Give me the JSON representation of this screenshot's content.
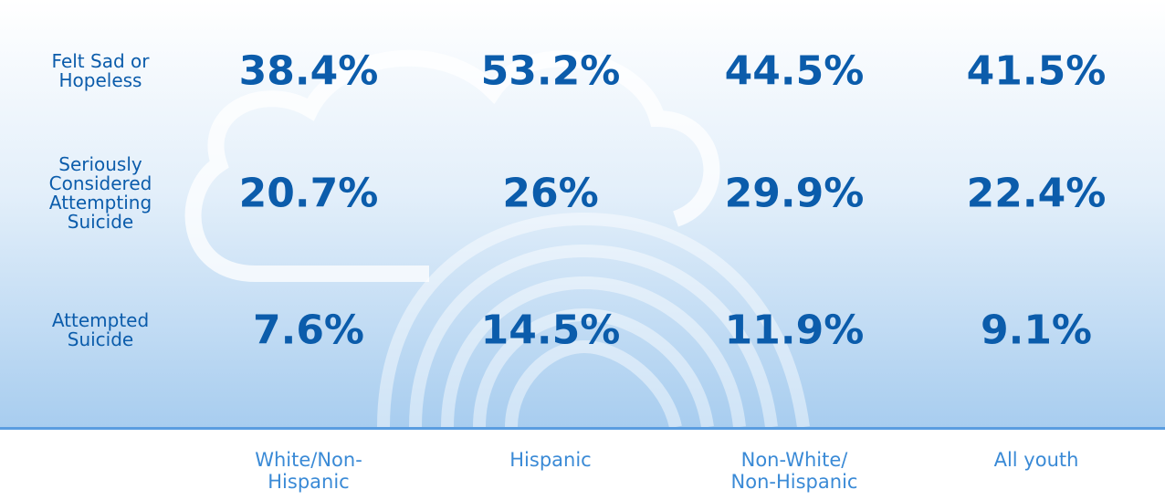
{
  "table": {
    "rows": [
      {
        "label": [
          "Felt Sad or",
          "Hopeless"
        ],
        "values": [
          "38.4%",
          "53.2%",
          "44.5%",
          "41.5%"
        ]
      },
      {
        "label": [
          "Seriously",
          "Considered",
          "Attempting",
          "Suicide"
        ],
        "values": [
          "20.7%",
          "26%",
          "29.9%",
          "22.4%"
        ]
      },
      {
        "label": [
          "Attempted",
          "Suicide"
        ],
        "values": [
          "7.6%",
          "14.5%",
          "11.9%",
          "9.1%"
        ]
      }
    ],
    "columns": [
      [
        "White/Non-",
        "Hispanic"
      ],
      [
        "Hispanic"
      ],
      [
        "Non-White/",
        "Non-Hispanic"
      ],
      [
        "All youth"
      ]
    ]
  }
}
